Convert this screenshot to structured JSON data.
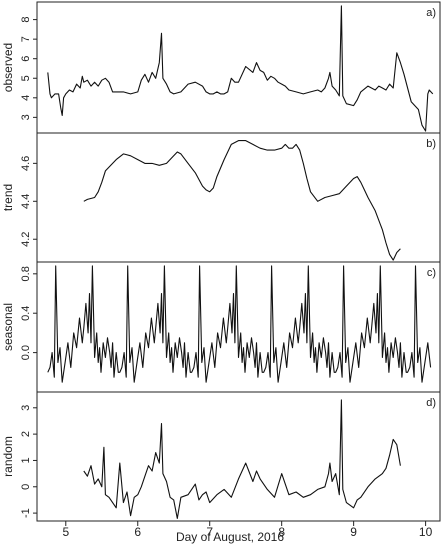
{
  "chart_data": {
    "type": "line",
    "xlabel": "Day of August, 2016",
    "xlim": [
      4.6,
      10.2
    ],
    "xticks": [
      5,
      6,
      7,
      8,
      9,
      10
    ],
    "xtick_labels": [
      "5",
      "6",
      "7",
      "8",
      "9",
      "10"
    ],
    "panels": [
      {
        "id": "observed",
        "label": "a)",
        "ylabel": "observed",
        "ylim": [
          2.2,
          8.9
        ],
        "yticks": [
          3,
          4,
          5,
          6,
          7,
          8
        ],
        "ytick_labels": [
          "3",
          "4",
          "5",
          "6",
          "7",
          "8"
        ],
        "x": [
          4.75,
          4.78,
          4.8,
          4.85,
          4.9,
          4.93,
          4.95,
          4.97,
          5.0,
          5.05,
          5.1,
          5.15,
          5.2,
          5.23,
          5.25,
          5.3,
          5.35,
          5.4,
          5.45,
          5.5,
          5.55,
          5.6,
          5.65,
          5.7,
          5.8,
          5.9,
          6.0,
          6.05,
          6.1,
          6.15,
          6.2,
          6.25,
          6.3,
          6.33,
          6.35,
          6.4,
          6.45,
          6.5,
          6.6,
          6.7,
          6.8,
          6.9,
          6.95,
          7.0,
          7.05,
          7.1,
          7.15,
          7.2,
          7.25,
          7.3,
          7.35,
          7.4,
          7.5,
          7.6,
          7.65,
          7.7,
          7.75,
          7.8,
          7.85,
          7.9,
          7.95,
          8.0,
          8.05,
          8.1,
          8.2,
          8.3,
          8.4,
          8.5,
          8.55,
          8.6,
          8.65,
          8.67,
          8.7,
          8.75,
          8.8,
          8.83,
          8.85,
          8.9,
          9.0,
          9.05,
          9.1,
          9.2,
          9.3,
          9.35,
          9.4,
          9.45,
          9.5,
          9.55,
          9.6,
          9.65,
          9.7,
          9.8,
          9.9,
          9.95,
          10.0,
          10.03,
          10.05,
          10.1
        ],
        "y": [
          5.3,
          4.2,
          4.0,
          4.2,
          4.2,
          3.5,
          3.1,
          4.0,
          4.2,
          4.4,
          4.3,
          4.7,
          4.5,
          5.1,
          4.8,
          4.9,
          4.6,
          4.8,
          4.6,
          4.9,
          5.0,
          4.8,
          4.3,
          4.3,
          4.3,
          4.2,
          4.3,
          4.9,
          5.2,
          4.8,
          5.3,
          5.0,
          5.8,
          7.3,
          5.0,
          4.7,
          4.3,
          4.2,
          4.3,
          4.7,
          4.8,
          4.6,
          4.3,
          4.2,
          4.2,
          4.3,
          4.2,
          4.2,
          4.3,
          5.0,
          4.8,
          4.8,
          5.6,
          5.3,
          5.8,
          5.4,
          5.3,
          4.9,
          5.1,
          5.0,
          4.8,
          4.7,
          4.6,
          4.4,
          4.3,
          4.2,
          4.3,
          4.4,
          4.3,
          4.5,
          5.0,
          5.3,
          4.6,
          4.4,
          4.1,
          8.7,
          4.1,
          3.7,
          3.6,
          3.9,
          4.3,
          4.6,
          4.4,
          4.6,
          4.5,
          4.4,
          4.7,
          4.5,
          6.3,
          5.8,
          5.2,
          3.8,
          3.4,
          2.6,
          2.3,
          4.2,
          4.4,
          4.2
        ]
      },
      {
        "id": "trend",
        "label": "b)",
        "ylabel": "trend",
        "ylim": [
          4.08,
          4.76
        ],
        "yticks": [
          4.2,
          4.4,
          4.6
        ],
        "ytick_labels": [
          "4.2",
          "4.4",
          "4.6"
        ],
        "x": [
          5.25,
          5.3,
          5.4,
          5.45,
          5.5,
          5.55,
          5.6,
          5.7,
          5.8,
          5.9,
          6.0,
          6.1,
          6.2,
          6.3,
          6.4,
          6.5,
          6.55,
          6.6,
          6.7,
          6.8,
          6.9,
          6.95,
          7.0,
          7.05,
          7.1,
          7.2,
          7.3,
          7.4,
          7.5,
          7.55,
          7.6,
          7.7,
          7.8,
          7.9,
          8.0,
          8.05,
          8.1,
          8.15,
          8.2,
          8.25,
          8.3,
          8.35,
          8.4,
          8.5,
          8.6,
          8.7,
          8.8,
          8.9,
          9.0,
          9.05,
          9.1,
          9.15,
          9.2,
          9.3,
          9.4,
          9.45,
          9.5,
          9.55,
          9.6,
          9.65
        ],
        "y": [
          4.4,
          4.41,
          4.42,
          4.45,
          4.5,
          4.56,
          4.58,
          4.62,
          4.65,
          4.64,
          4.62,
          4.6,
          4.6,
          4.59,
          4.6,
          4.64,
          4.66,
          4.65,
          4.6,
          4.55,
          4.48,
          4.46,
          4.45,
          4.47,
          4.53,
          4.62,
          4.7,
          4.72,
          4.72,
          4.71,
          4.7,
          4.68,
          4.67,
          4.67,
          4.68,
          4.7,
          4.68,
          4.68,
          4.7,
          4.67,
          4.6,
          4.52,
          4.45,
          4.4,
          4.42,
          4.43,
          4.44,
          4.48,
          4.52,
          4.53,
          4.5,
          4.46,
          4.42,
          4.35,
          4.25,
          4.18,
          4.12,
          4.09,
          4.13,
          4.15
        ]
      },
      {
        "id": "seasonal",
        "label": "c)",
        "ylabel": "seasonal",
        "ylim": [
          -0.4,
          0.92
        ],
        "yticks": [
          0.0,
          0.4,
          0.8
        ],
        "ytick_labels": [
          "0.0",
          "0.4",
          "0.8"
        ],
        "cycle_period_days": 1.0,
        "cycle_start": 4.75,
        "cycle_x_offset": [
          0.0,
          0.03,
          0.06,
          0.09,
          0.11,
          0.14,
          0.17,
          0.2,
          0.24,
          0.28,
          0.32,
          0.36,
          0.4,
          0.44,
          0.48,
          0.5,
          0.53,
          0.56,
          0.58,
          0.6,
          0.62,
          0.65,
          0.68,
          0.7,
          0.72,
          0.74,
          0.77,
          0.8,
          0.83,
          0.86,
          0.88,
          0.9,
          0.92,
          0.95,
          0.98
        ],
        "cycle_y": [
          -0.2,
          -0.15,
          0.0,
          -0.25,
          0.88,
          -0.1,
          0.05,
          -0.3,
          -0.1,
          0.1,
          -0.15,
          0.2,
          0.05,
          0.35,
          0.1,
          0.25,
          0.5,
          0.2,
          0.6,
          0.1,
          0.88,
          -0.05,
          0.2,
          -0.1,
          0.05,
          -0.2,
          0.1,
          -0.05,
          0.15,
          0.0,
          -0.15,
          0.1,
          -0.25,
          0.0,
          -0.2
        ],
        "x_end": 10.1
      },
      {
        "id": "random",
        "label": "d)",
        "ylabel": "random",
        "ylim": [
          -1.3,
          3.6
        ],
        "yticks": [
          -1,
          0,
          1,
          2,
          3
        ],
        "ytick_labels": [
          "-1",
          "0",
          "1",
          "2",
          "3"
        ],
        "x": [
          5.25,
          5.3,
          5.35,
          5.4,
          5.45,
          5.5,
          5.53,
          5.55,
          5.6,
          5.7,
          5.75,
          5.8,
          5.85,
          5.9,
          5.95,
          6.0,
          6.05,
          6.1,
          6.15,
          6.2,
          6.25,
          6.3,
          6.33,
          6.35,
          6.4,
          6.45,
          6.5,
          6.55,
          6.6,
          6.7,
          6.8,
          6.85,
          6.9,
          6.95,
          7.0,
          7.1,
          7.2,
          7.3,
          7.4,
          7.5,
          7.6,
          7.65,
          7.7,
          7.8,
          7.9,
          8.0,
          8.1,
          8.2,
          8.3,
          8.4,
          8.5,
          8.6,
          8.65,
          8.67,
          8.7,
          8.75,
          8.8,
          8.83,
          8.85,
          8.9,
          9.0,
          9.05,
          9.1,
          9.2,
          9.3,
          9.4,
          9.45,
          9.5,
          9.55,
          9.6,
          9.65
        ],
        "y": [
          0.6,
          0.4,
          0.8,
          0.1,
          0.3,
          0.0,
          1.5,
          -0.3,
          -0.4,
          -0.8,
          0.9,
          -0.6,
          -0.2,
          -1.1,
          -0.4,
          -0.3,
          0.0,
          0.4,
          0.8,
          0.6,
          1.3,
          0.9,
          2.4,
          0.5,
          0.2,
          -0.4,
          -0.5,
          -1.2,
          -0.4,
          -0.3,
          0.1,
          -0.5,
          -0.3,
          -0.2,
          -0.6,
          -0.3,
          -0.1,
          -0.4,
          0.3,
          0.9,
          0.2,
          0.6,
          0.3,
          -0.1,
          -0.4,
          0.5,
          -0.3,
          -0.2,
          -0.4,
          -0.3,
          -0.1,
          0.0,
          0.5,
          0.9,
          0.2,
          0.5,
          -0.3,
          3.3,
          -0.1,
          -0.6,
          -0.8,
          -0.5,
          -0.4,
          0.0,
          0.3,
          0.5,
          0.7,
          1.2,
          1.8,
          1.6,
          0.8
        ]
      }
    ]
  }
}
